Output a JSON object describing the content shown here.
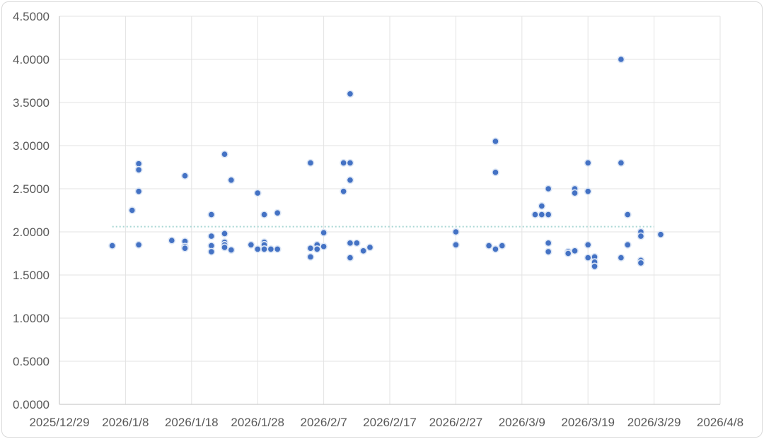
{
  "chart_data": {
    "type": "scatter",
    "title": "",
    "xlabel": "",
    "ylabel": "",
    "x_axis": {
      "type": "date",
      "range": [
        "2025-12-29",
        "2026-04-08"
      ],
      "tick_labels": [
        "2025/12/29",
        "2026/1/8",
        "2026/1/18",
        "2026/1/28",
        "2026/2/7",
        "2026/2/17",
        "2026/2/27",
        "2026/3/9",
        "2026/3/19",
        "2026/3/29",
        "2026/4/8"
      ]
    },
    "y_axis": {
      "range": [
        0,
        4.5
      ],
      "tick_labels": [
        "0.0000",
        "0.5000",
        "1.0000",
        "1.5000",
        "2.0000",
        "2.5000",
        "3.0000",
        "3.5000",
        "4.0000",
        "4.5000"
      ]
    },
    "grid": true,
    "legend": "none",
    "colors": {
      "point_fill": "#4472c4",
      "point_stroke": "#dce6f5",
      "average_line": "#a9d6d4",
      "grid": "#e3e3e3",
      "axis": "#bfbfbf"
    },
    "average_line": {
      "value": 2.06,
      "x_range": [
        "2026-01-06",
        "2026-03-29"
      ],
      "style": "dotted"
    },
    "points": [
      [
        "2026-01-06",
        1.84
      ],
      [
        "2026-01-09",
        2.25
      ],
      [
        "2026-01-10",
        2.79
      ],
      [
        "2026-01-10",
        2.72
      ],
      [
        "2026-01-10",
        2.47
      ],
      [
        "2026-01-10",
        1.85
      ],
      [
        "2026-01-15",
        1.9
      ],
      [
        "2026-01-17",
        2.65
      ],
      [
        "2026-01-17",
        1.89
      ],
      [
        "2026-01-17",
        1.83
      ],
      [
        "2026-01-17",
        1.81
      ],
      [
        "2026-01-21",
        2.2
      ],
      [
        "2026-01-21",
        1.95
      ],
      [
        "2026-01-21",
        1.84
      ],
      [
        "2026-01-21",
        1.77
      ],
      [
        "2026-01-23",
        2.9
      ],
      [
        "2026-01-23",
        1.98
      ],
      [
        "2026-01-23",
        1.88
      ],
      [
        "2026-01-23",
        1.85
      ],
      [
        "2026-01-23",
        1.82
      ],
      [
        "2026-01-24",
        2.6
      ],
      [
        "2026-01-24",
        1.79
      ],
      [
        "2026-01-27",
        1.85
      ],
      [
        "2026-01-28",
        2.45
      ],
      [
        "2026-01-28",
        1.8
      ],
      [
        "2026-01-29",
        2.2
      ],
      [
        "2026-01-29",
        1.88
      ],
      [
        "2026-01-29",
        1.85
      ],
      [
        "2026-01-29",
        1.8
      ],
      [
        "2026-01-30",
        1.8
      ],
      [
        "2026-01-31",
        2.22
      ],
      [
        "2026-01-31",
        1.8
      ],
      [
        "2026-02-05",
        2.8
      ],
      [
        "2026-02-05",
        1.81
      ],
      [
        "2026-02-05",
        1.71
      ],
      [
        "2026-02-06",
        1.85
      ],
      [
        "2026-02-06",
        1.8
      ],
      [
        "2026-02-07",
        1.99
      ],
      [
        "2026-02-07",
        1.83
      ],
      [
        "2026-02-10",
        2.8
      ],
      [
        "2026-02-10",
        2.47
      ],
      [
        "2026-02-11",
        3.6
      ],
      [
        "2026-02-11",
        2.8
      ],
      [
        "2026-02-11",
        2.6
      ],
      [
        "2026-02-11",
        1.87
      ],
      [
        "2026-02-11",
        1.7
      ],
      [
        "2026-02-12",
        1.87
      ],
      [
        "2026-02-13",
        1.78
      ],
      [
        "2026-02-14",
        1.82
      ],
      [
        "2026-02-27",
        2.0
      ],
      [
        "2026-02-27",
        1.85
      ],
      [
        "2026-03-04",
        1.84
      ],
      [
        "2026-03-05",
        3.05
      ],
      [
        "2026-03-05",
        2.69
      ],
      [
        "2026-03-05",
        1.8
      ],
      [
        "2026-03-06",
        1.84
      ],
      [
        "2026-03-11",
        2.2
      ],
      [
        "2026-03-12",
        2.3
      ],
      [
        "2026-03-12",
        2.2
      ],
      [
        "2026-03-13",
        2.5
      ],
      [
        "2026-03-13",
        2.2
      ],
      [
        "2026-03-13",
        1.87
      ],
      [
        "2026-03-13",
        1.77
      ],
      [
        "2026-03-16",
        1.77
      ],
      [
        "2026-03-16",
        1.75
      ],
      [
        "2026-03-17",
        2.5
      ],
      [
        "2026-03-17",
        2.45
      ],
      [
        "2026-03-17",
        1.78
      ],
      [
        "2026-03-19",
        2.8
      ],
      [
        "2026-03-19",
        2.47
      ],
      [
        "2026-03-19",
        1.85
      ],
      [
        "2026-03-19",
        1.7
      ],
      [
        "2026-03-20",
        1.71
      ],
      [
        "2026-03-20",
        1.65
      ],
      [
        "2026-03-20",
        1.6
      ],
      [
        "2026-03-24",
        4.0
      ],
      [
        "2026-03-24",
        2.8
      ],
      [
        "2026-03-24",
        1.7
      ],
      [
        "2026-03-25",
        2.2
      ],
      [
        "2026-03-25",
        1.85
      ],
      [
        "2026-03-27",
        2.0
      ],
      [
        "2026-03-27",
        1.95
      ],
      [
        "2026-03-27",
        1.67
      ],
      [
        "2026-03-27",
        1.64
      ],
      [
        "2026-03-30",
        1.97
      ]
    ]
  }
}
